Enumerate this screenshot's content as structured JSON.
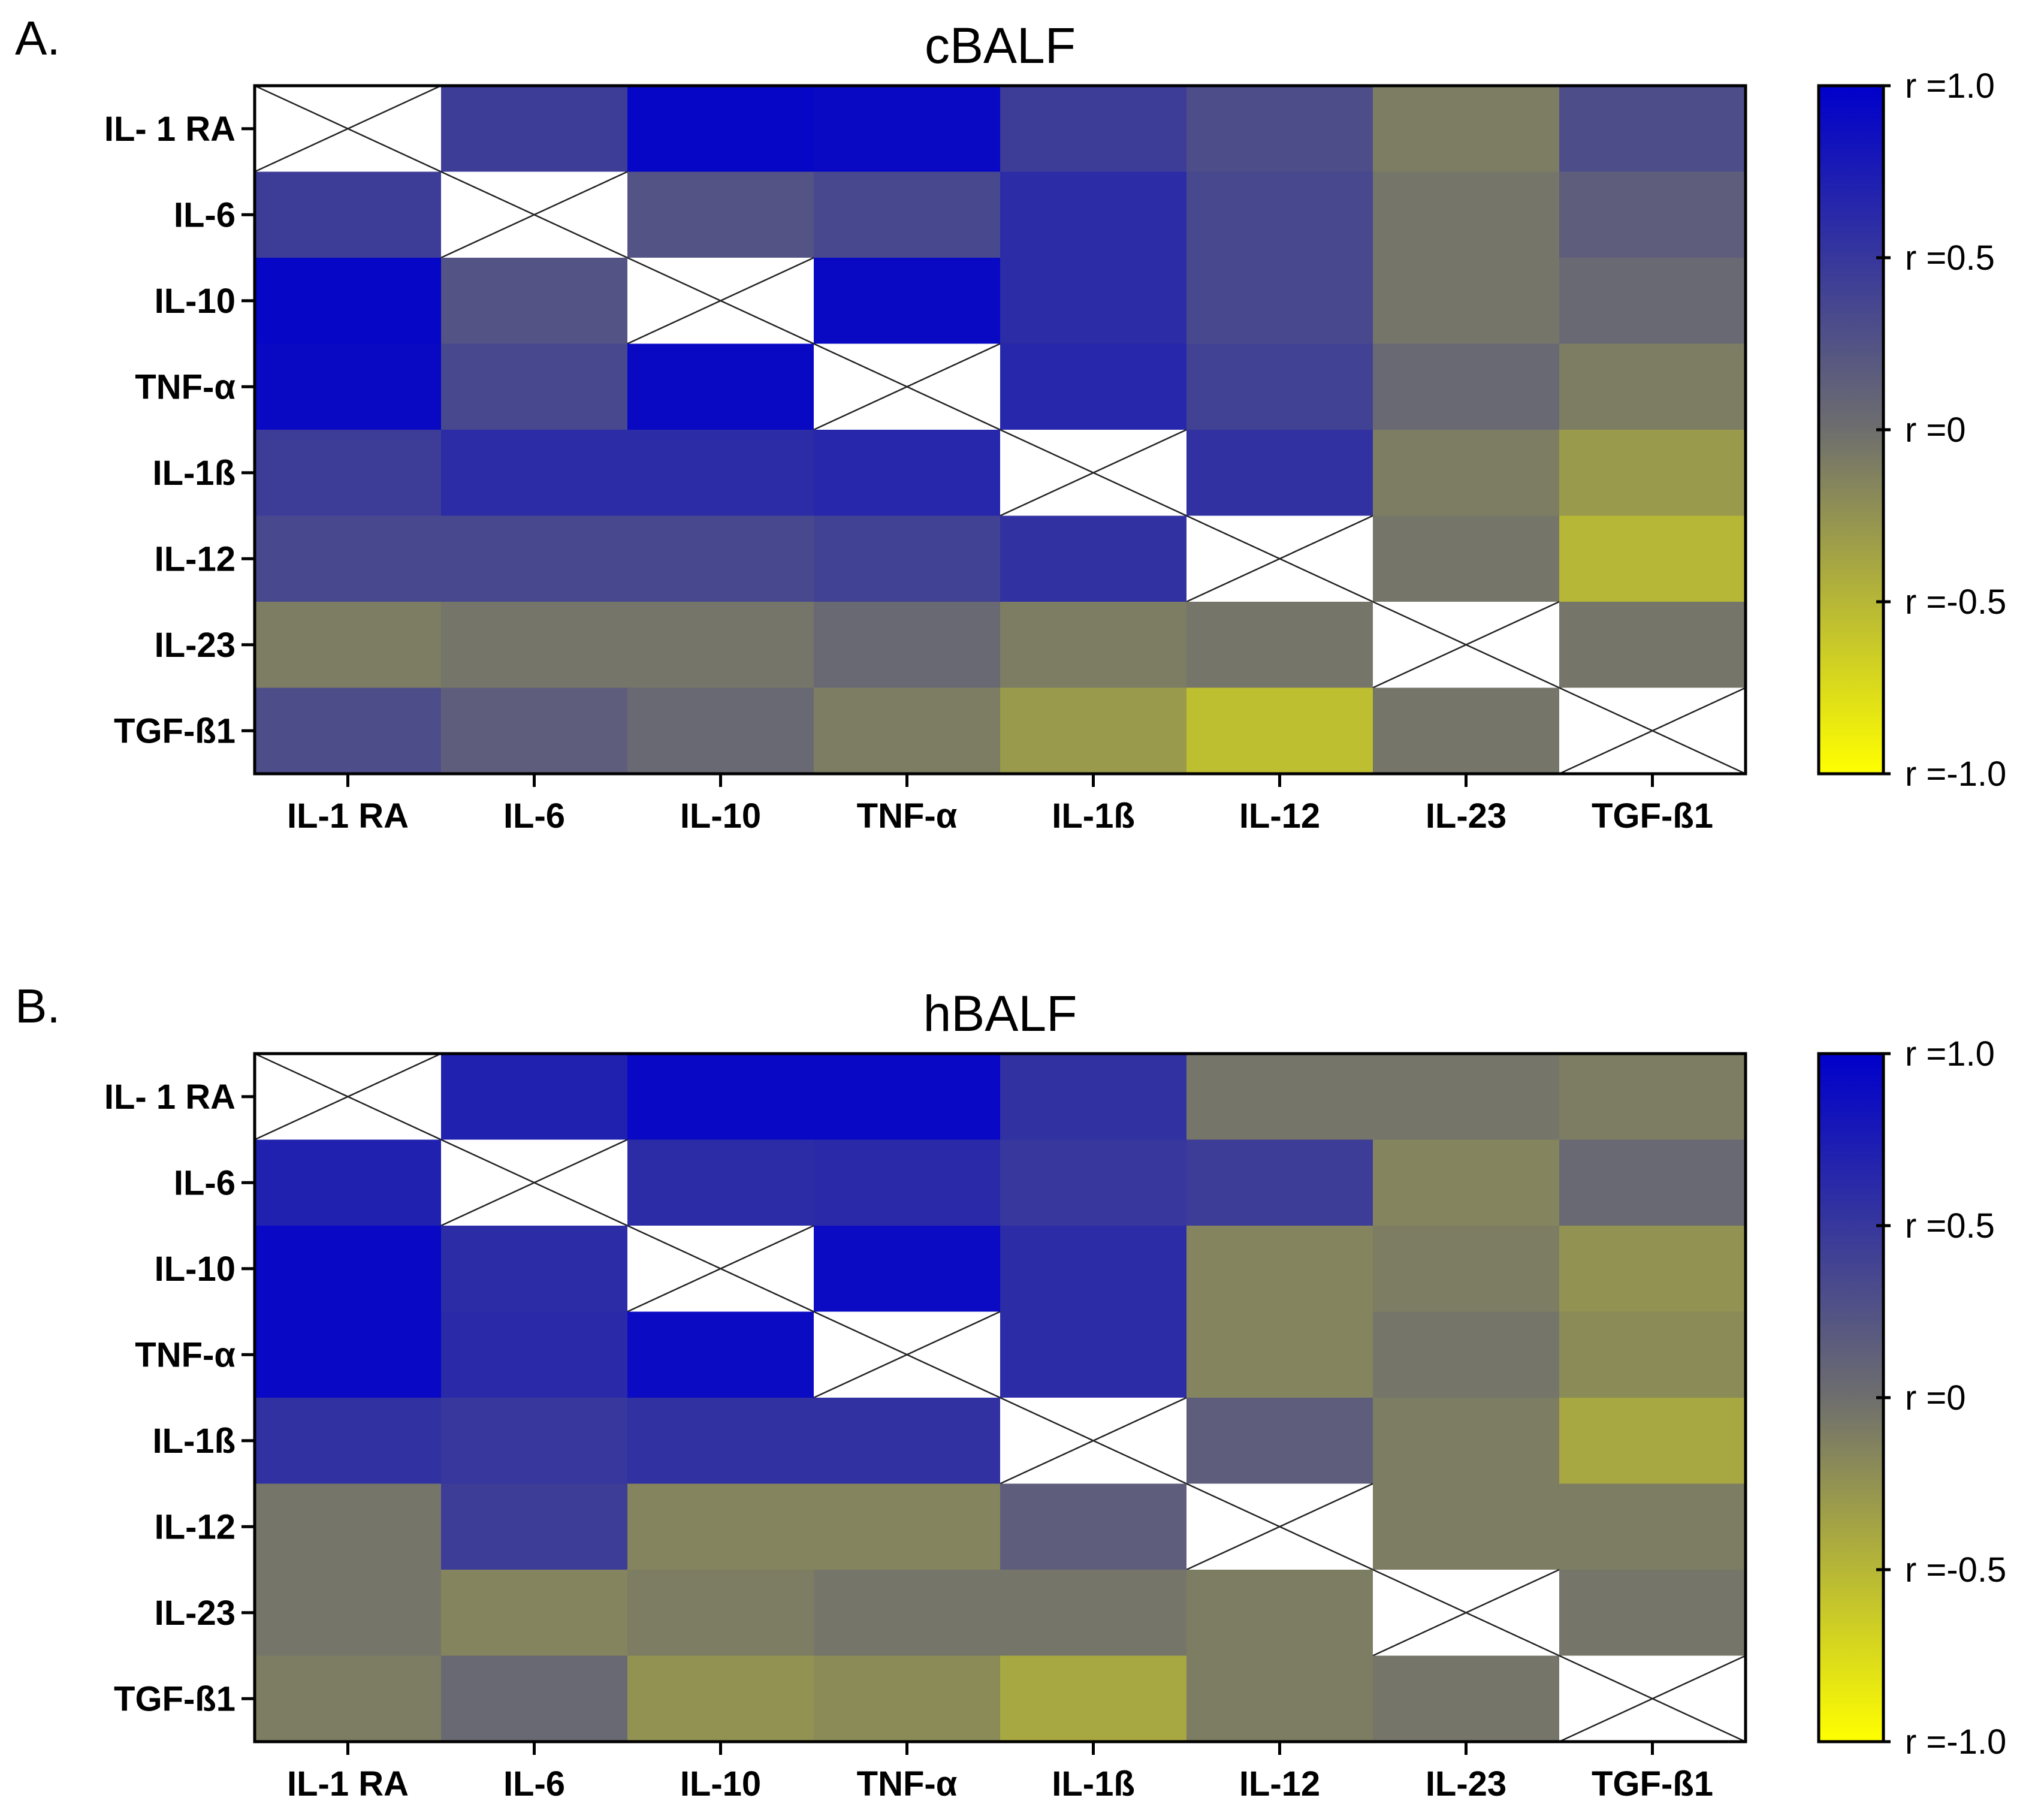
{
  "chart_data": [
    {
      "type": "heatmap",
      "panel_label": "A.",
      "title": "cBALF",
      "row_labels": [
        "IL- 1 RA",
        "IL-6",
        "IL-10",
        "TNF-α",
        "IL-1ß",
        "IL-12",
        "IL-23",
        "TGF-ß1"
      ],
      "col_labels": [
        "IL-1 RA",
        "IL-6",
        "IL-10",
        "TNF-α",
        "IL-1ß",
        "IL-12",
        "IL-23",
        "TGF-ß1"
      ],
      "values": [
        [
          null,
          0.45,
          0.95,
          0.92,
          0.45,
          0.3,
          -0.1,
          0.3
        ],
        [
          0.45,
          null,
          0.25,
          0.35,
          0.6,
          0.35,
          -0.05,
          0.15
        ],
        [
          0.95,
          0.25,
          null,
          0.92,
          0.6,
          0.35,
          -0.05,
          0.05
        ],
        [
          0.92,
          0.35,
          0.92,
          null,
          0.65,
          0.4,
          0.05,
          -0.1
        ],
        [
          0.45,
          0.6,
          0.6,
          0.65,
          null,
          0.55,
          -0.1,
          -0.3
        ],
        [
          0.35,
          0.35,
          0.35,
          0.4,
          0.55,
          null,
          -0.05,
          -0.5
        ],
        [
          -0.1,
          -0.05,
          -0.05,
          0.05,
          -0.1,
          -0.05,
          null,
          -0.05
        ],
        [
          0.3,
          0.15,
          0.05,
          -0.1,
          -0.3,
          -0.55,
          -0.05,
          null
        ]
      ],
      "colorbar": {
        "min": -1.0,
        "max": 1.0,
        "tick_labels": [
          "r =1.0",
          "r =0.5",
          "r =0",
          "r =-0.5",
          "r =-1.0"
        ],
        "tick_values": [
          1.0,
          0.5,
          0,
          -0.5,
          -1.0
        ],
        "color_high": "#0000cc",
        "color_mid": "#6e6e6e",
        "color_low": "#ffff00"
      }
    },
    {
      "type": "heatmap",
      "panel_label": "B.",
      "title": "hBALF",
      "row_labels": [
        "IL- 1 RA",
        "IL-6",
        "IL-10",
        "TNF-α",
        "IL-1ß",
        "IL-12",
        "IL-23",
        "TGF-ß1"
      ],
      "col_labels": [
        "IL-1 RA",
        "IL-6",
        "IL-10",
        "TNF-α",
        "IL-1ß",
        "IL-12",
        "IL-23",
        "TGF-ß1"
      ],
      "values": [
        [
          null,
          0.7,
          0.93,
          0.93,
          0.55,
          -0.05,
          -0.05,
          -0.1
        ],
        [
          0.7,
          null,
          0.6,
          0.62,
          0.5,
          0.45,
          -0.15,
          0.05
        ],
        [
          0.93,
          0.6,
          null,
          0.9,
          0.6,
          -0.15,
          -0.1,
          -0.25
        ],
        [
          0.93,
          0.62,
          0.9,
          null,
          0.6,
          -0.15,
          -0.05,
          -0.2
        ],
        [
          0.55,
          0.5,
          0.55,
          0.55,
          null,
          0.15,
          -0.1,
          -0.4
        ],
        [
          -0.05,
          0.45,
          -0.15,
          -0.15,
          0.15,
          null,
          -0.1,
          -0.1
        ],
        [
          -0.05,
          -0.15,
          -0.1,
          -0.05,
          -0.05,
          -0.1,
          null,
          -0.05
        ],
        [
          -0.1,
          0.05,
          -0.25,
          -0.2,
          -0.4,
          -0.1,
          -0.05,
          null
        ]
      ],
      "colorbar": {
        "min": -1.0,
        "max": 1.0,
        "tick_labels": [
          "r =1.0",
          "r =0.5",
          "r =0",
          "r =-0.5",
          "r =-1.0"
        ],
        "tick_values": [
          1.0,
          0.5,
          0,
          -0.5,
          -1.0
        ],
        "color_high": "#0000cc",
        "color_mid": "#6e6e6e",
        "color_low": "#ffff00"
      }
    }
  ]
}
